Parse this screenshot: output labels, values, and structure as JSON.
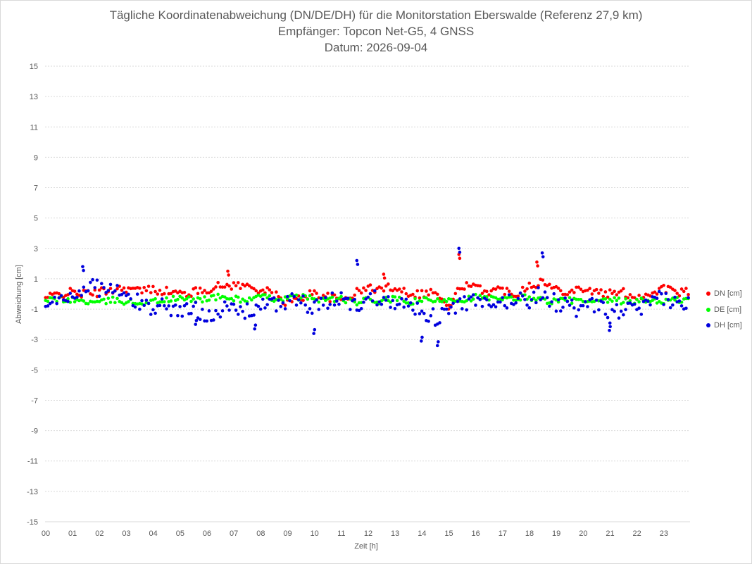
{
  "title": [
    "Tägliche Koordinatenabweichung (DN/DE/DH) für die Monitorstation Eberswalde (Referenz 27,9 km)",
    "Empfänger: Topcon Net-G5, 4 GNSS",
    "Datum: 2026-09-04"
  ],
  "chart_data": {
    "type": "scatter",
    "xlabel": "Zeit [h]",
    "ylabel": "Abweichung [cm]",
    "xlim": [
      0,
      24
    ],
    "ylim": [
      -15,
      15
    ],
    "y_ticks": [
      -15,
      -13,
      -11,
      -9,
      -7,
      -5,
      -3,
      -1,
      1,
      3,
      5,
      7,
      9,
      11,
      13,
      15
    ],
    "x_tick_labels": [
      "00",
      "01",
      "02",
      "03",
      "04",
      "05",
      "06",
      "07",
      "08",
      "09",
      "10",
      "11",
      "12",
      "13",
      "14",
      "15",
      "16",
      "17",
      "18",
      "19",
      "20",
      "21",
      "22",
      "23"
    ],
    "grid": "horizontal dotted",
    "legend_position": "right",
    "series": [
      {
        "name": "DN [cm]",
        "color": "#ff0000",
        "x": [
          0,
          0.5,
          1,
          1.5,
          2,
          2.5,
          3,
          3.5,
          4,
          4.5,
          5,
          5.5,
          6,
          6.5,
          7,
          7.5,
          8,
          8.5,
          9,
          9.5,
          10,
          10.5,
          11,
          11.5,
          12,
          12.5,
          13,
          13.5,
          14,
          14.5,
          15,
          15.5,
          16,
          16.5,
          17,
          17.5,
          18,
          18.5,
          19,
          19.5,
          20,
          20.5,
          21,
          21.5,
          22,
          22.5,
          23,
          23.5
        ],
        "y": [
          -0.3,
          0.0,
          0.1,
          0.0,
          0.1,
          0.3,
          0.4,
          0.2,
          0.3,
          0.2,
          0.0,
          0.1,
          0.3,
          0.5,
          0.6,
          0.5,
          0.3,
          0.0,
          -0.6,
          -0.3,
          0.1,
          -0.2,
          -0.4,
          0.0,
          0.4,
          0.3,
          0.5,
          0.1,
          0.0,
          0.2,
          -1.0,
          0.6,
          0.4,
          0.2,
          0.3,
          0.0,
          0.6,
          0.8,
          0.3,
          0.2,
          0.4,
          0.1,
          0.0,
          0.1,
          -0.2,
          0.0,
          0.4,
          0.1
        ],
        "extremes": [
          [
            6.8,
            1.5
          ],
          [
            12.6,
            1.3
          ],
          [
            15.4,
            2.6
          ],
          [
            18.3,
            2.1
          ],
          [
            15.0,
            -1.0
          ]
        ]
      },
      {
        "name": "DE [cm]",
        "color": "#00ff00",
        "x": [
          0,
          0.5,
          1,
          1.5,
          2,
          2.5,
          3,
          3.5,
          4,
          4.5,
          5,
          5.5,
          6,
          6.5,
          7,
          7.5,
          8,
          8.5,
          9,
          9.5,
          10,
          10.5,
          11,
          11.5,
          12,
          12.5,
          13,
          13.5,
          14,
          14.5,
          15,
          15.5,
          16,
          16.5,
          17,
          17.5,
          18,
          18.5,
          19,
          19.5,
          20,
          20.5,
          21,
          21.5,
          22,
          22.5,
          23,
          23.5
        ],
        "y": [
          -0.5,
          -0.3,
          -0.4,
          -0.5,
          -0.6,
          -0.4,
          -0.5,
          -0.6,
          -0.5,
          -0.4,
          -0.3,
          -0.4,
          -0.3,
          -0.2,
          -0.3,
          -0.4,
          -0.2,
          -0.3,
          -0.3,
          -0.2,
          -0.3,
          -0.4,
          -0.3,
          -0.6,
          -0.4,
          -0.5,
          -0.3,
          -0.6,
          -0.4,
          -0.5,
          -0.3,
          -0.4,
          -0.2,
          -0.3,
          -0.4,
          -0.3,
          -0.2,
          -0.4,
          -0.5,
          -0.4,
          -0.5,
          -0.6,
          -0.4,
          -0.5,
          -0.5,
          -0.4,
          -0.5,
          -0.4
        ]
      },
      {
        "name": "DH [cm]",
        "color": "#0000dd",
        "x": [
          0,
          0.5,
          1,
          1.5,
          2,
          2.5,
          3,
          3.5,
          4,
          4.5,
          5,
          5.5,
          6,
          6.5,
          7,
          7.5,
          8,
          8.5,
          9,
          9.5,
          10,
          10.5,
          11,
          11.5,
          12,
          12.5,
          13,
          13.5,
          14,
          14.5,
          15,
          15.5,
          16,
          16.5,
          17,
          17.5,
          18,
          18.5,
          19,
          19.5,
          20,
          20.5,
          21,
          21.5,
          22,
          22.5,
          23,
          23.5
        ],
        "y": [
          -0.9,
          -0.4,
          -0.2,
          0.6,
          0.4,
          0.3,
          -0.2,
          -0.6,
          -0.9,
          -0.7,
          -1.2,
          -1.0,
          -1.3,
          -1.1,
          -1.0,
          -1.2,
          -0.7,
          -0.8,
          -0.4,
          -0.5,
          -1.0,
          -0.6,
          -0.2,
          -0.8,
          -0.3,
          -0.2,
          -0.4,
          -0.8,
          -1.0,
          -1.6,
          -1.2,
          -0.6,
          -0.5,
          -0.9,
          -0.6,
          -0.3,
          -0.4,
          0.1,
          -0.6,
          -0.8,
          -1.1,
          -0.7,
          -1.4,
          -1.0,
          -1.1,
          -0.8,
          -0.2,
          -0.7
        ],
        "extremes": [
          [
            1.4,
            1.8
          ],
          [
            11.6,
            2.2
          ],
          [
            15.4,
            3.0
          ],
          [
            18.5,
            2.7
          ],
          [
            14.6,
            -3.4
          ],
          [
            14.0,
            -3.1
          ],
          [
            10.0,
            -2.6
          ],
          [
            7.8,
            -2.3
          ],
          [
            21.0,
            -2.4
          ],
          [
            5.6,
            -2.0
          ]
        ]
      }
    ]
  }
}
